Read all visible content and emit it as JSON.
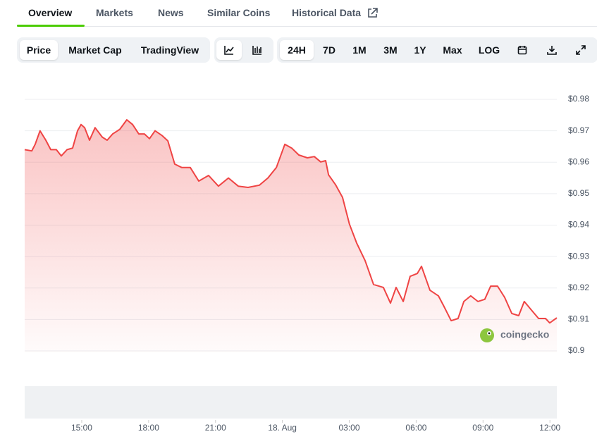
{
  "tabs": [
    "Overview",
    "Markets",
    "News",
    "Similar Coins",
    "Historical Data"
  ],
  "toolbar": {
    "views": [
      "Price",
      "Market Cap",
      "TradingView"
    ],
    "ranges": [
      "24H",
      "7D",
      "1M",
      "3M",
      "1Y",
      "Max",
      "LOG"
    ]
  },
  "watermark": "coingecko",
  "chart_data": {
    "type": "area",
    "color": "#ef4444",
    "grid": true,
    "x": [
      12.44,
      12.76,
      12.91,
      13.13,
      13.39,
      13.61,
      13.86,
      14.08,
      14.34,
      14.59,
      14.81,
      14.97,
      15.13,
      15.35,
      15.6,
      15.92,
      16.14,
      16.39,
      16.71,
      17.02,
      17.28,
      17.56,
      17.81,
      18.04,
      18.29,
      18.6,
      18.86,
      19.17,
      19.49,
      19.87,
      20.25,
      20.69,
      21.13,
      21.58,
      22.02,
      22.46,
      22.97,
      23.35,
      23.73,
      24.11,
      24.42,
      24.74,
      25.12,
      25.43,
      25.72,
      25.94,
      26.07,
      26.38,
      26.7,
      27.01,
      27.33,
      27.71,
      28.09,
      28.53,
      28.85,
      29.1,
      29.42,
      29.73,
      30.05,
      30.24,
      30.62,
      31.0,
      31.25,
      31.57,
      31.88,
      32.14,
      32.45,
      32.77,
      33.08,
      33.34,
      33.65,
      33.97,
      34.29,
      34.6,
      34.85,
      35.17,
      35.49,
      35.8,
      35.99,
      36.31
    ],
    "values": [
      0.964,
      0.9636,
      0.9657,
      0.97,
      0.967,
      0.964,
      0.964,
      0.962,
      0.964,
      0.9645,
      0.97,
      0.972,
      0.971,
      0.967,
      0.971,
      0.968,
      0.967,
      0.969,
      0.9705,
      0.9735,
      0.972,
      0.969,
      0.969,
      0.9675,
      0.97,
      0.9685,
      0.9668,
      0.9594,
      0.9583,
      0.9583,
      0.954,
      0.9558,
      0.9524,
      0.955,
      0.9524,
      0.952,
      0.9527,
      0.955,
      0.9583,
      0.9657,
      0.9645,
      0.9623,
      0.9614,
      0.9618,
      0.9601,
      0.9605,
      0.956,
      0.9529,
      0.9488,
      0.9403,
      0.9343,
      0.9287,
      0.9211,
      0.9202,
      0.9152,
      0.9202,
      0.9157,
      0.9237,
      0.9246,
      0.9269,
      0.9193,
      0.9175,
      0.9141,
      0.9096,
      0.9103,
      0.9157,
      0.9175,
      0.9157,
      0.9164,
      0.9206,
      0.9206,
      0.917,
      0.9119,
      0.9112,
      0.9157,
      0.913,
      0.9103,
      0.9103,
      0.9089,
      0.9105
    ],
    "xlim": [
      12.44,
      36.31
    ],
    "xticks": [
      {
        "value": 15,
        "label": "15:00"
      },
      {
        "value": 18,
        "label": "18:00"
      },
      {
        "value": 21,
        "label": "21:00"
      },
      {
        "value": 24,
        "label": "18. Aug"
      },
      {
        "value": 27,
        "label": "03:00"
      },
      {
        "value": 30,
        "label": "06:00"
      },
      {
        "value": 33,
        "label": "09:00"
      },
      {
        "value": 36,
        "label": "12:00"
      }
    ],
    "ylim": [
      0.9,
      0.98
    ],
    "yticks": [
      {
        "value": 0.9,
        "label": "$0.9"
      },
      {
        "value": 0.91,
        "label": "$0.91"
      },
      {
        "value": 0.92,
        "label": "$0.92"
      },
      {
        "value": 0.93,
        "label": "$0.93"
      },
      {
        "value": 0.94,
        "label": "$0.94"
      },
      {
        "value": 0.95,
        "label": "$0.95"
      },
      {
        "value": 0.96,
        "label": "$0.96"
      },
      {
        "value": 0.97,
        "label": "$0.97"
      },
      {
        "value": 0.98,
        "label": "$0.98"
      }
    ]
  }
}
